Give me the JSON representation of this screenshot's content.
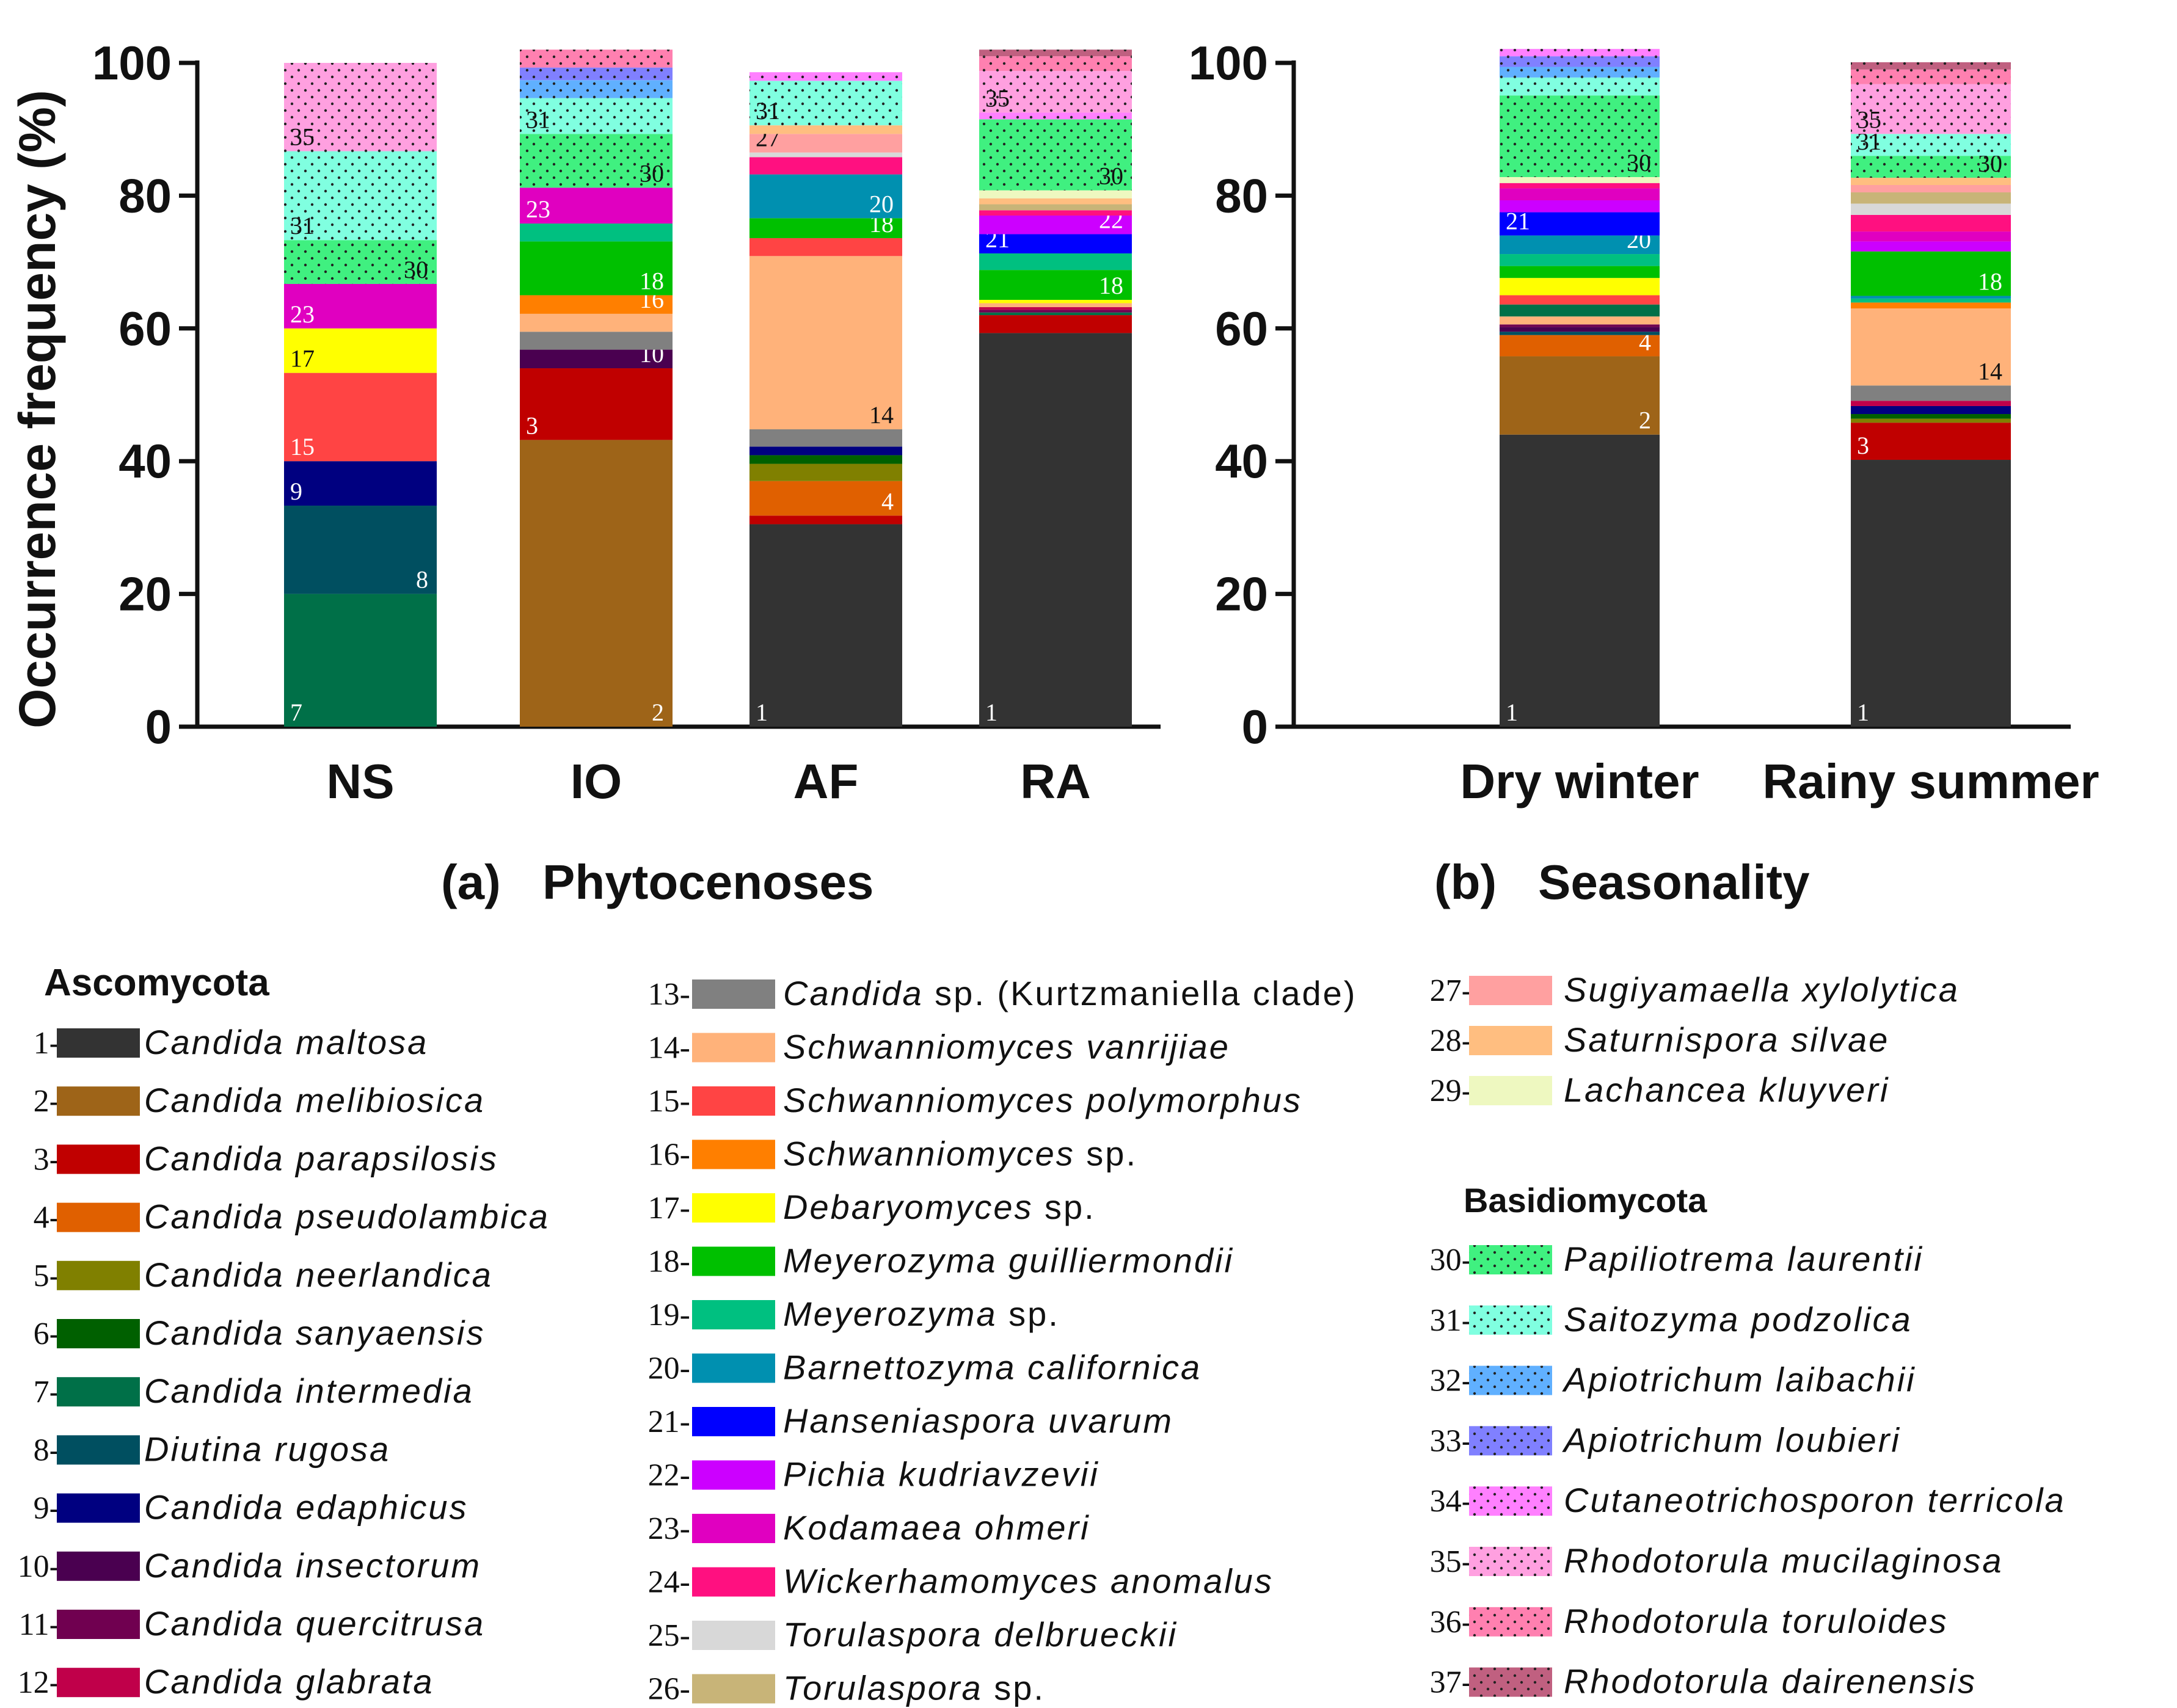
{
  "chart_data": [
    {
      "type": "bar",
      "stacked": true,
      "panel_label": "(a)",
      "title": "Phytocenoses",
      "ylabel": "Occurrence frequency (%)",
      "ylim": [
        0,
        100
      ],
      "yticks": [
        "0",
        "20",
        "40",
        "60",
        "80",
        "100"
      ],
      "categories": [
        "NS",
        "IO",
        "AF",
        "RA"
      ],
      "stacks": [
        {
          "category": "NS",
          "segments": [
            {
              "species": 7,
              "value": 20
            },
            {
              "species": 8,
              "value": 13.3
            },
            {
              "species": 9,
              "value": 6.7
            },
            {
              "species": 15,
              "value": 13.3
            },
            {
              "species": 17,
              "value": 6.7
            },
            {
              "species": 23,
              "value": 6.7
            },
            {
              "species": 30,
              "value": 6.6
            },
            {
              "species": 31,
              "value": 13.4
            },
            {
              "species": 35,
              "value": 13.3
            }
          ]
        },
        {
          "category": "IO",
          "segments": [
            {
              "species": 2,
              "value": 43.2
            },
            {
              "species": 3,
              "value": 10.8
            },
            {
              "species": 10,
              "value": 2.8
            },
            {
              "species": 13,
              "value": 2.7
            },
            {
              "species": 14,
              "value": 2.7
            },
            {
              "species": 16,
              "value": 2.8
            },
            {
              "species": 18,
              "value": 8.1
            },
            {
              "species": 19,
              "value": 2.7
            },
            {
              "species": 23,
              "value": 5.4
            },
            {
              "species": 30,
              "value": 8.1
            },
            {
              "species": 31,
              "value": 5.4
            },
            {
              "species": 32,
              "value": 2.7
            },
            {
              "species": 33,
              "value": 1.9
            },
            {
              "species": 36,
              "value": 2.7
            }
          ]
        },
        {
          "category": "AF",
          "segments": [
            {
              "species": 1,
              "value": 30.5
            },
            {
              "species": 3,
              "value": 1.3
            },
            {
              "species": 4,
              "value": 5.2
            },
            {
              "species": 5,
              "value": 2.6
            },
            {
              "species": 6,
              "value": 1.3
            },
            {
              "species": 9,
              "value": 1.3
            },
            {
              "species": 13,
              "value": 2.6
            },
            {
              "species": 14,
              "value": 26.1
            },
            {
              "species": 15,
              "value": 2.7
            },
            {
              "species": 18,
              "value": 3.0
            },
            {
              "species": 20,
              "value": 6.6
            },
            {
              "species": 24,
              "value": 2.6
            },
            {
              "species": 25,
              "value": 0.7
            },
            {
              "species": 27,
              "value": 2.8
            },
            {
              "species": 28,
              "value": 1.3
            },
            {
              "species": 31,
              "value": 6.7
            },
            {
              "species": 34,
              "value": 1.3
            }
          ]
        },
        {
          "category": "RA",
          "segments": [
            {
              "species": 1,
              "value": 59.3
            },
            {
              "species": 3,
              "value": 2.7
            },
            {
              "species": 7,
              "value": 0.4
            },
            {
              "species": 11,
              "value": 0.4
            },
            {
              "species": 12,
              "value": 0.4
            },
            {
              "species": 14,
              "value": 0.6
            },
            {
              "species": 17,
              "value": 0.5
            },
            {
              "species": 18,
              "value": 4.5
            },
            {
              "species": 19,
              "value": 2.5
            },
            {
              "species": 21,
              "value": 2.9
            },
            {
              "species": 22,
              "value": 2.8
            },
            {
              "species": 24,
              "value": 0.8
            },
            {
              "species": 26,
              "value": 0.9
            },
            {
              "species": 28,
              "value": 0.9
            },
            {
              "species": 29,
              "value": 1.2
            },
            {
              "species": 30,
              "value": 10.7
            },
            {
              "species": 34,
              "value": 1.0
            },
            {
              "species": 35,
              "value": 6.3
            },
            {
              "species": 36,
              "value": 2.2
            },
            {
              "species": 37,
              "value": 1.0
            }
          ]
        }
      ]
    },
    {
      "type": "bar",
      "stacked": true,
      "panel_label": "(b)",
      "title": "Seasonality",
      "ylabel": "",
      "ylim": [
        0,
        100
      ],
      "yticks": [
        "0",
        "20",
        "40",
        "60",
        "80",
        "100"
      ],
      "categories": [
        "Dry winter",
        "Rainy summer"
      ],
      "stacks": [
        {
          "category": "Dry winter",
          "segments": [
            {
              "species": 1,
              "value": 44
            },
            {
              "species": 2,
              "value": 11.8
            },
            {
              "species": 4,
              "value": 3.2
            },
            {
              "species": 8,
              "value": 0.5
            },
            {
              "species": 10,
              "value": 0.7
            },
            {
              "species": 11,
              "value": 0.4
            },
            {
              "species": 14,
              "value": 1.2
            },
            {
              "species": 7,
              "value": 1.8
            },
            {
              "species": 15,
              "value": 1.4
            },
            {
              "species": 17,
              "value": 2.6
            },
            {
              "species": 18,
              "value": 1.8
            },
            {
              "species": 19,
              "value": 1.8
            },
            {
              "species": 20,
              "value": 2.8
            },
            {
              "species": 21,
              "value": 3.5
            },
            {
              "species": 22,
              "value": 1.8
            },
            {
              "species": 23,
              "value": 1.8
            },
            {
              "species": 24,
              "value": 0.8
            },
            {
              "species": 29,
              "value": 0.9
            },
            {
              "species": 30,
              "value": 12.3
            },
            {
              "species": 31,
              "value": 2.7
            },
            {
              "species": 32,
              "value": 1.6
            },
            {
              "species": 33,
              "value": 1.6
            },
            {
              "species": 34,
              "value": 1.1
            }
          ]
        },
        {
          "category": "Rainy summer",
          "segments": [
            {
              "species": 1,
              "value": 40.2
            },
            {
              "species": 3,
              "value": 5.6
            },
            {
              "species": 5,
              "value": 0.6
            },
            {
              "species": 6,
              "value": 0.7
            },
            {
              "species": 9,
              "value": 1.2
            },
            {
              "species": 12,
              "value": 0.8
            },
            {
              "species": 13,
              "value": 2.3
            },
            {
              "species": 14,
              "value": 11.6
            },
            {
              "species": 16,
              "value": 0.9
            },
            {
              "species": 19,
              "value": 0.6
            },
            {
              "species": 20,
              "value": 0.4
            },
            {
              "species": 18,
              "value": 6.7
            },
            {
              "species": 22,
              "value": 1.5
            },
            {
              "species": 23,
              "value": 1.5
            },
            {
              "species": 24,
              "value": 2.5
            },
            {
              "species": 25,
              "value": 1.7
            },
            {
              "species": 26,
              "value": 1.7
            },
            {
              "species": 27,
              "value": 1.1
            },
            {
              "species": 28,
              "value": 1.1
            },
            {
              "species": 30,
              "value": 3.3
            },
            {
              "species": 31,
              "value": 3.3
            },
            {
              "species": 35,
              "value": 7.5
            },
            {
              "species": 36,
              "value": 2.2
            },
            {
              "species": 37,
              "value": 1.1
            }
          ]
        }
      ]
    }
  ],
  "legend": {
    "groups": {
      "ascomycota": "Ascomycota",
      "basidiomycota": "Basidiomycota"
    },
    "items": [
      {
        "id": 1,
        "num": "1-",
        "parts": [
          {
            "t": "Candida maltosa",
            "i": true
          }
        ],
        "color": "#333333",
        "dotted": false
      },
      {
        "id": 2,
        "num": "2-",
        "parts": [
          {
            "t": "Candida melibiosica",
            "i": true
          }
        ],
        "color": "#9E6418",
        "dotted": false
      },
      {
        "id": 3,
        "num": "3-",
        "parts": [
          {
            "t": "Candida parapsilosis",
            "i": true
          }
        ],
        "color": "#C00000",
        "dotted": false
      },
      {
        "id": 4,
        "num": "4-",
        "parts": [
          {
            "t": "Candida pseudolambica",
            "i": true
          }
        ],
        "color": "#E06000",
        "dotted": false
      },
      {
        "id": 5,
        "num": "5-",
        "parts": [
          {
            "t": "Candida neerlandica",
            "i": true
          }
        ],
        "color": "#808000",
        "dotted": false
      },
      {
        "id": 6,
        "num": "6-",
        "parts": [
          {
            "t": "Candida sanyaensis",
            "i": true
          }
        ],
        "color": "#006000",
        "dotted": false
      },
      {
        "id": 7,
        "num": "7-",
        "parts": [
          {
            "t": "Candida intermedia",
            "i": true
          }
        ],
        "color": "#007048",
        "dotted": false
      },
      {
        "id": 8,
        "num": "8-",
        "parts": [
          {
            "t": "Diutina rugosa",
            "i": true
          }
        ],
        "color": "#004F60",
        "dotted": false
      },
      {
        "id": 9,
        "num": "9-",
        "parts": [
          {
            "t": "Candida edaphicus",
            "i": true
          }
        ],
        "color": "#000080",
        "dotted": false
      },
      {
        "id": 10,
        "num": "10-",
        "parts": [
          {
            "t": "Candida insectorum",
            "i": true
          }
        ],
        "color": "#4A0050",
        "dotted": false
      },
      {
        "id": 11,
        "num": "11-",
        "parts": [
          {
            "t": "Candida quercitrusa",
            "i": true
          }
        ],
        "color": "#700050",
        "dotted": false
      },
      {
        "id": 12,
        "num": "12-",
        "parts": [
          {
            "t": "Candida glabrata",
            "i": true
          }
        ],
        "color": "#C0004A",
        "dotted": false
      },
      {
        "id": 13,
        "num": "13-",
        "parts": [
          {
            "t": "Candida",
            "i": true
          },
          {
            "t": " sp. (Kurtzmaniella clade)",
            "i": false
          }
        ],
        "color": "#808080",
        "dotted": false
      },
      {
        "id": 14,
        "num": "14-",
        "parts": [
          {
            "t": "Schwanniomyces vanrijiae",
            "i": true
          }
        ],
        "color": "#FFB27A",
        "dotted": false
      },
      {
        "id": 15,
        "num": "15-",
        "parts": [
          {
            "t": "Schwanniomyces polymorphus",
            "i": true
          }
        ],
        "color": "#FF4444",
        "dotted": false
      },
      {
        "id": 16,
        "num": "16-",
        "parts": [
          {
            "t": "Schwanniomyces",
            "i": true
          },
          {
            "t": " sp.",
            "i": false
          }
        ],
        "color": "#FF7F00",
        "dotted": false
      },
      {
        "id": 17,
        "num": "17-",
        "parts": [
          {
            "t": "Debaryomyces",
            "i": true
          },
          {
            "t": " sp.",
            "i": false
          }
        ],
        "color": "#FFFF00",
        "dotted": false
      },
      {
        "id": 18,
        "num": "18-",
        "parts": [
          {
            "t": "Meyerozyma guilliermondii",
            "i": true
          }
        ],
        "color": "#00C000",
        "dotted": false
      },
      {
        "id": 19,
        "num": "19-",
        "parts": [
          {
            "t": "Meyerozyma",
            "i": true
          },
          {
            "t": " sp.",
            "i": false
          }
        ],
        "color": "#00C080",
        "dotted": false
      },
      {
        "id": 20,
        "num": "20-",
        "parts": [
          {
            "t": "Barnettozyma californica",
            "i": true
          }
        ],
        "color": "#0090B0",
        "dotted": false
      },
      {
        "id": 21,
        "num": "21-",
        "parts": [
          {
            "t": "Hanseniaspora uvarum",
            "i": true
          }
        ],
        "color": "#0000FF",
        "dotted": false
      },
      {
        "id": 22,
        "num": "22-",
        "parts": [
          {
            "t": "Pichia kudriavzevii",
            "i": true
          }
        ],
        "color": "#CC00FF",
        "dotted": false
      },
      {
        "id": 23,
        "num": "23-",
        "parts": [
          {
            "t": "Kodamaea ohmeri",
            "i": true
          }
        ],
        "color": "#E000C0",
        "dotted": false
      },
      {
        "id": 24,
        "num": "24-",
        "parts": [
          {
            "t": "Wickerhamomyces anomalus",
            "i": true
          }
        ],
        "color": "#FF1080",
        "dotted": false
      },
      {
        "id": 25,
        "num": "25-",
        "parts": [
          {
            "t": "Torulaspora delbrueckii",
            "i": true
          }
        ],
        "color": "#D8D8D8",
        "dotted": false
      },
      {
        "id": 26,
        "num": "26-",
        "parts": [
          {
            "t": "Torulaspora",
            "i": true
          },
          {
            "t": " sp.",
            "i": false
          }
        ],
        "color": "#C8B478",
        "dotted": false
      },
      {
        "id": 27,
        "num": "27-",
        "parts": [
          {
            "t": "Sugiyamaella xylolytica",
            "i": true
          }
        ],
        "color": "#FFA0A0",
        "dotted": false
      },
      {
        "id": 28,
        "num": "28-",
        "parts": [
          {
            "t": "Saturnispora silvae",
            "i": true
          }
        ],
        "color": "#FFBE80",
        "dotted": false
      },
      {
        "id": 29,
        "num": "29-",
        "parts": [
          {
            "t": "Lachancea kluyveri",
            "i": true
          }
        ],
        "color": "#EEF8C0",
        "dotted": false
      },
      {
        "id": 30,
        "num": "30-",
        "parts": [
          {
            "t": "Papiliotrema laurentii",
            "i": true
          }
        ],
        "color": "#40F080",
        "dotted": true
      },
      {
        "id": 31,
        "num": "31-",
        "parts": [
          {
            "t": "Saitozyma podzolica",
            "i": true
          }
        ],
        "color": "#80FFE0",
        "dotted": true
      },
      {
        "id": 32,
        "num": "32-",
        "parts": [
          {
            "t": "Apiotrichum laibachii",
            "i": true
          }
        ],
        "color": "#60B0FF",
        "dotted": true
      },
      {
        "id": 33,
        "num": "33-",
        "parts": [
          {
            "t": "Apiotrichum loubieri",
            "i": true
          }
        ],
        "color": "#8080FF",
        "dotted": true
      },
      {
        "id": 34,
        "num": "34-",
        "parts": [
          {
            "t": "Cutaneotrichosporon terricola",
            "i": true
          }
        ],
        "color": "#FF80FF",
        "dotted": true
      },
      {
        "id": 35,
        "num": "35-",
        "parts": [
          {
            "t": "Rhodotorula mucilaginosa",
            "i": true
          }
        ],
        "color": "#FFA0E0",
        "dotted": true
      },
      {
        "id": 36,
        "num": "36-",
        "parts": [
          {
            "t": "Rhodotorula toruloides",
            "i": true
          }
        ],
        "color": "#FF80B0",
        "dotted": true
      },
      {
        "id": 37,
        "num": "37-",
        "parts": [
          {
            "t": "Rhodotorula dairenensis",
            "i": true
          }
        ],
        "color": "#C06080",
        "dotted": true
      }
    ]
  }
}
